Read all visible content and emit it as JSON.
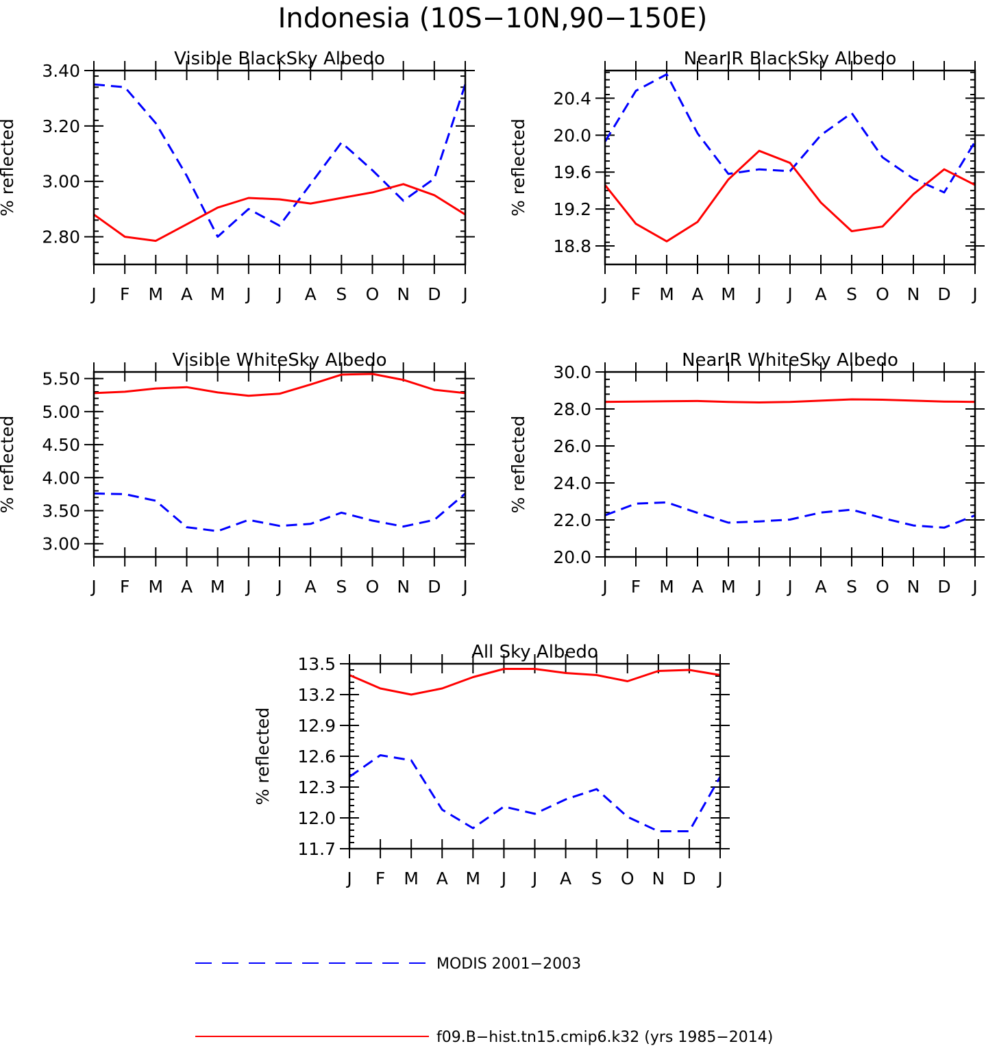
{
  "title": "Indonesia (10S−10N,90−150E)",
  "colors": {
    "modis": "#0000ff",
    "model": "#ff0000",
    "axes": "#000000"
  },
  "legend": [
    {
      "key": "modis",
      "label": "MODIS 2001−2003",
      "style": "dashed"
    },
    {
      "key": "model",
      "label": "f09.B−hist.tn15.cmip6.k32 (yrs 1985−2014)",
      "style": "solid"
    }
  ],
  "chart_data": [
    {
      "type": "line",
      "title": "Visible BlackSky Albedo",
      "ylabel": "% reflected",
      "categories": [
        "J",
        "F",
        "M",
        "A",
        "M",
        "J",
        "J",
        "A",
        "S",
        "O",
        "N",
        "D",
        "J"
      ],
      "ylim": [
        2.7,
        3.4
      ],
      "yticks": [
        "2.80",
        "3.00",
        "3.20",
        "3.40"
      ],
      "series": [
        {
          "key": "modis",
          "values": [
            3.35,
            3.34,
            3.21,
            3.02,
            2.8,
            2.9,
            2.84,
            2.99,
            3.14,
            3.04,
            2.93,
            3.01,
            3.35
          ]
        },
        {
          "key": "model",
          "values": [
            2.88,
            2.8,
            2.785,
            2.845,
            2.905,
            2.94,
            2.935,
            2.92,
            2.94,
            2.96,
            2.99,
            2.95,
            2.88
          ]
        }
      ]
    },
    {
      "type": "line",
      "title": "NearIR BlackSky Albedo",
      "ylabel": "% reflected",
      "categories": [
        "J",
        "F",
        "M",
        "A",
        "M",
        "J",
        "J",
        "A",
        "S",
        "O",
        "N",
        "D",
        "J"
      ],
      "ylim": [
        18.6,
        20.7
      ],
      "yticks": [
        "18.8",
        "19.2",
        "19.6",
        "20.0",
        "20.4"
      ],
      "series": [
        {
          "key": "modis",
          "values": [
            19.93,
            20.48,
            20.66,
            20.02,
            19.58,
            19.63,
            19.61,
            20.0,
            20.24,
            19.76,
            19.53,
            19.38,
            19.93
          ]
        },
        {
          "key": "model",
          "values": [
            19.46,
            19.04,
            18.85,
            19.06,
            19.52,
            19.83,
            19.7,
            19.27,
            18.96,
            19.01,
            19.36,
            19.63,
            19.46
          ]
        }
      ]
    },
    {
      "type": "line",
      "title": "Visible WhiteSky Albedo",
      "ylabel": "% reflected",
      "categories": [
        "J",
        "F",
        "M",
        "A",
        "M",
        "J",
        "J",
        "A",
        "S",
        "O",
        "N",
        "D",
        "J"
      ],
      "ylim": [
        2.8,
        5.6
      ],
      "yticks": [
        "3.00",
        "3.50",
        "4.00",
        "4.50",
        "5.00",
        "5.50"
      ],
      "series": [
        {
          "key": "modis",
          "values": [
            3.76,
            3.75,
            3.65,
            3.25,
            3.19,
            3.36,
            3.27,
            3.3,
            3.47,
            3.35,
            3.26,
            3.36,
            3.76
          ]
        },
        {
          "key": "model",
          "values": [
            5.28,
            5.3,
            5.35,
            5.37,
            5.29,
            5.24,
            5.27,
            5.41,
            5.56,
            5.57,
            5.48,
            5.33,
            5.28
          ]
        }
      ]
    },
    {
      "type": "line",
      "title": "NearIR WhiteSky Albedo",
      "ylabel": "% reflected",
      "categories": [
        "J",
        "F",
        "M",
        "A",
        "M",
        "J",
        "J",
        "A",
        "S",
        "O",
        "N",
        "D",
        "J"
      ],
      "ylim": [
        20.0,
        30.0
      ],
      "yticks": [
        "20.0",
        "22.0",
        "24.0",
        "26.0",
        "28.0",
        "30.0"
      ],
      "series": [
        {
          "key": "modis",
          "values": [
            22.25,
            22.88,
            22.95,
            22.38,
            21.85,
            21.92,
            22.02,
            22.4,
            22.55,
            22.1,
            21.7,
            21.58,
            22.25
          ]
        },
        {
          "key": "model",
          "values": [
            28.38,
            28.4,
            28.42,
            28.43,
            28.38,
            28.35,
            28.38,
            28.45,
            28.52,
            28.5,
            28.45,
            28.4,
            28.38
          ]
        }
      ]
    },
    {
      "type": "line",
      "title": "All Sky Albedo",
      "ylabel": "% reflected",
      "categories": [
        "J",
        "F",
        "M",
        "A",
        "M",
        "J",
        "J",
        "A",
        "S",
        "O",
        "N",
        "D",
        "J"
      ],
      "ylim": [
        11.7,
        13.5
      ],
      "yticks": [
        "11.7",
        "12.0",
        "12.3",
        "12.6",
        "12.9",
        "13.2",
        "13.5"
      ],
      "series": [
        {
          "key": "modis",
          "values": [
            12.4,
            12.61,
            12.56,
            12.08,
            11.9,
            12.11,
            12.04,
            12.18,
            12.28,
            12.01,
            11.87,
            11.87,
            12.4
          ]
        },
        {
          "key": "model",
          "values": [
            13.39,
            13.26,
            13.2,
            13.26,
            13.37,
            13.45,
            13.45,
            13.41,
            13.39,
            13.33,
            13.43,
            13.44,
            13.39
          ]
        }
      ]
    }
  ]
}
